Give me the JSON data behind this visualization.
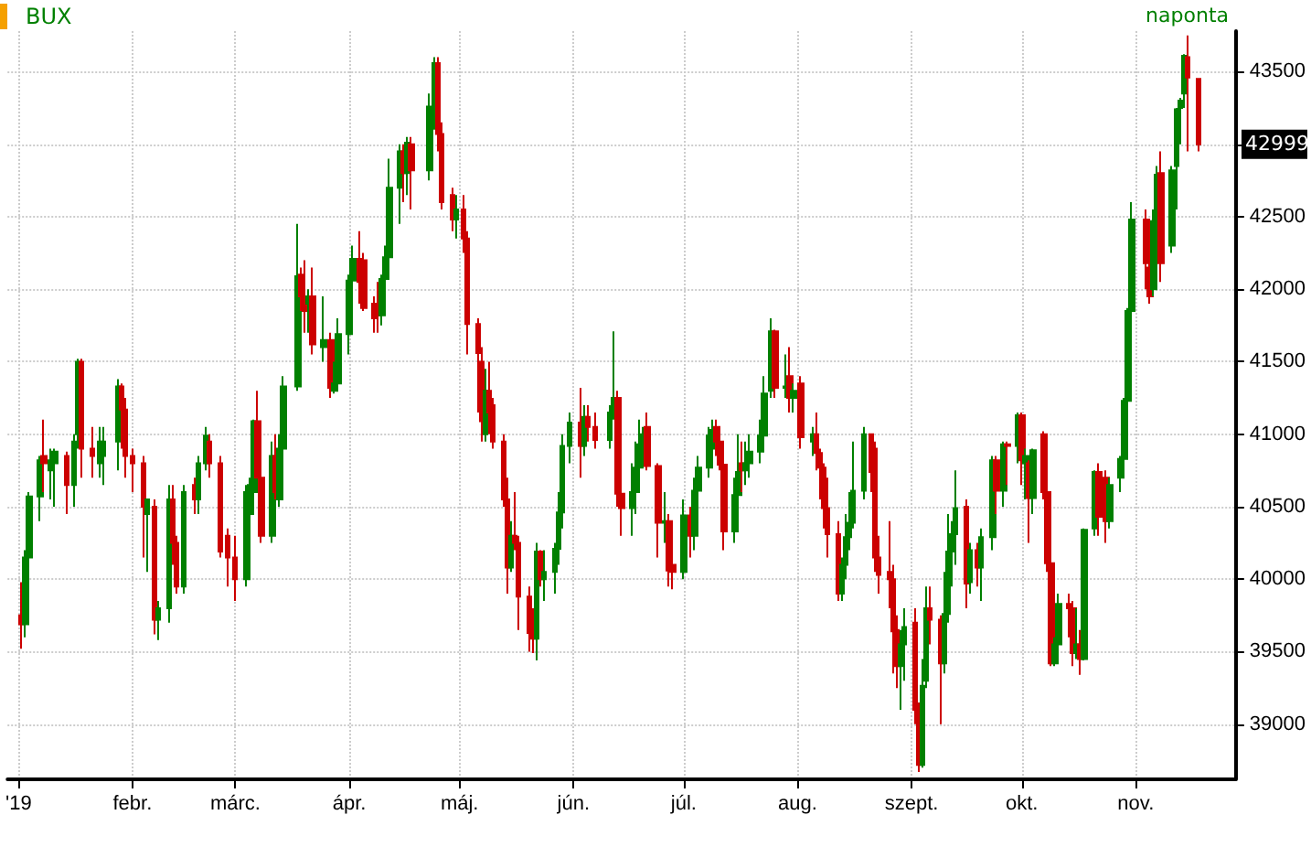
{
  "chart_data": {
    "type": "candlestick",
    "title": "BUX",
    "annotations": [
      "naponta",
      {
        "text": "42999",
        "x": "2019-11-18",
        "y": 42999
      }
    ],
    "grid": true,
    "xlim": [
      "2018-12-29",
      "2019-11-28"
    ],
    "xticks": [
      {
        "value": "2019-01-01",
        "label": "'19"
      },
      {
        "value": "2019-02-01",
        "label": "febr."
      },
      {
        "value": "2019-03-01",
        "label": "márc."
      },
      {
        "value": "2019-04-01",
        "label": "ápr."
      },
      {
        "value": "2019-05-01",
        "label": "máj."
      },
      {
        "value": "2019-06-01",
        "label": "jún."
      },
      {
        "value": "2019-07-01",
        "label": "júl."
      },
      {
        "value": "2019-08-01",
        "label": "aug."
      },
      {
        "value": "2019-09-01",
        "label": "szept."
      },
      {
        "value": "2019-10-01",
        "label": "okt."
      },
      {
        "value": "2019-11-01",
        "label": "nov."
      }
    ],
    "ylim": [
      38620,
      43780
    ],
    "yticks": [
      39000,
      39500,
      40000,
      40500,
      41000,
      41500,
      42000,
      42500,
      {
        "value": 43000,
        "label": null
      },
      43500
    ],
    "x": [
      "2019-01-02",
      "2019-01-03",
      "2019-01-04",
      "2019-01-07",
      "2019-01-08",
      "2019-01-10",
      "2019-01-11",
      "2019-01-14",
      "2019-01-16",
      "2019-01-17",
      "2019-01-18",
      "2019-01-21",
      "2019-01-23",
      "2019-01-24",
      "2019-01-28",
      "2019-01-29",
      "2019-01-30",
      "2019-02-01",
      "2019-02-04",
      "2019-02-05",
      "2019-02-07",
      "2019-02-08",
      "2019-02-11",
      "2019-02-12",
      "2019-02-13",
      "2019-02-15",
      "2019-02-18",
      "2019-02-19",
      "2019-02-21",
      "2019-02-22",
      "2019-02-25",
      "2019-02-27",
      "2019-03-01",
      "2019-03-04",
      "2019-03-05",
      "2019-03-06",
      "2019-03-07",
      "2019-03-08",
      "2019-03-11",
      "2019-03-12",
      "2019-03-13",
      "2019-03-14",
      "2019-03-18",
      "2019-03-19",
      "2019-03-20",
      "2019-03-21",
      "2019-03-22",
      "2019-03-25",
      "2019-03-27",
      "2019-03-28",
      "2019-03-29",
      "2019-04-01",
      "2019-04-02",
      "2019-04-04",
      "2019-04-05",
      "2019-04-08",
      "2019-04-09",
      "2019-04-10",
      "2019-04-11",
      "2019-04-12",
      "2019-04-15",
      "2019-04-16",
      "2019-04-17",
      "2019-04-18",
      "2019-04-23",
      "2019-04-24",
      "2019-04-25",
      "2019-04-26",
      "2019-04-29",
      "2019-04-30",
      "2019-05-02",
      "2019-05-03",
      "2019-05-06",
      "2019-05-07",
      "2019-05-08",
      "2019-05-09",
      "2019-05-10",
      "2019-05-13",
      "2019-05-14",
      "2019-05-15",
      "2019-05-16",
      "2019-05-17",
      "2019-05-20",
      "2019-05-21",
      "2019-05-22",
      "2019-05-23",
      "2019-05-24",
      "2019-05-27",
      "2019-05-28",
      "2019-05-29",
      "2019-05-31",
      "2019-06-03",
      "2019-06-04",
      "2019-06-05",
      "2019-06-07",
      "2019-06-11",
      "2019-06-12",
      "2019-06-13",
      "2019-06-14",
      "2019-06-17",
      "2019-06-18",
      "2019-06-19",
      "2019-06-20",
      "2019-06-21",
      "2019-06-24",
      "2019-06-26",
      "2019-06-27",
      "2019-06-28",
      "2019-07-01",
      "2019-07-03",
      "2019-07-04",
      "2019-07-05",
      "2019-07-08",
      "2019-07-09",
      "2019-07-10",
      "2019-07-11",
      "2019-07-12",
      "2019-07-15",
      "2019-07-16",
      "2019-07-17",
      "2019-07-18",
      "2019-07-19",
      "2019-07-22",
      "2019-07-23",
      "2019-07-25",
      "2019-07-26",
      "2019-07-29",
      "2019-07-30",
      "2019-07-31",
      "2019-08-02",
      "2019-08-05",
      "2019-08-06",
      "2019-08-07",
      "2019-08-08",
      "2019-08-09",
      "2019-08-12",
      "2019-08-13",
      "2019-08-14",
      "2019-08-15",
      "2019-08-16",
      "2019-08-19",
      "2019-08-21",
      "2019-08-22",
      "2019-08-23",
      "2019-08-26",
      "2019-08-27",
      "2019-08-28",
      "2019-08-29",
      "2019-08-30",
      "2019-09-02",
      "2019-09-03",
      "2019-09-04",
      "2019-09-05",
      "2019-09-06",
      "2019-09-09",
      "2019-09-10",
      "2019-09-11",
      "2019-09-12",
      "2019-09-13",
      "2019-09-16",
      "2019-09-17",
      "2019-09-19",
      "2019-09-20",
      "2019-09-23",
      "2019-09-24",
      "2019-09-26",
      "2019-09-27",
      "2019-09-30",
      "2019-10-01",
      "2019-10-02",
      "2019-10-03",
      "2019-10-04",
      "2019-10-07",
      "2019-10-08",
      "2019-10-09",
      "2019-10-10",
      "2019-10-11",
      "2019-10-14",
      "2019-10-15",
      "2019-10-16",
      "2019-10-17",
      "2019-10-18",
      "2019-10-21",
      "2019-10-22",
      "2019-10-24",
      "2019-10-25",
      "2019-10-28",
      "2019-10-29",
      "2019-10-30",
      "2019-10-31",
      "2019-11-04",
      "2019-11-05",
      "2019-11-06",
      "2019-11-07",
      "2019-11-08",
      "2019-11-11",
      "2019-11-12",
      "2019-11-13",
      "2019-11-14",
      "2019-11-15",
      "2019-11-18"
    ],
    "ohlc": [
      [
        39750,
        39980,
        39520,
        39690
      ],
      [
        39690,
        40200,
        39600,
        40150
      ],
      [
        40150,
        40600,
        40050,
        40570
      ],
      [
        40570,
        40850,
        40400,
        40820
      ],
      [
        40850,
        41100,
        40600,
        40800
      ],
      [
        40750,
        40900,
        40550,
        40820
      ],
      [
        40800,
        40900,
        40500,
        40880
      ],
      [
        40850,
        40880,
        40450,
        40650
      ],
      [
        40650,
        41000,
        40500,
        40950
      ],
      [
        41000,
        41520,
        40900,
        41500
      ],
      [
        41500,
        41520,
        40700,
        40900
      ],
      [
        40900,
        41050,
        40700,
        40850
      ],
      [
        40800,
        41050,
        40700,
        40950
      ],
      [
        40850,
        41050,
        40650,
        40950
      ],
      [
        40950,
        41380,
        40750,
        41330
      ],
      [
        41330,
        41350,
        40900,
        41170
      ],
      [
        41170,
        41250,
        40700,
        40850
      ],
      [
        40850,
        40900,
        40600,
        40800
      ],
      [
        40800,
        40850,
        40150,
        40500
      ],
      [
        40450,
        40550,
        40050,
        40550
      ],
      [
        40500,
        40550,
        39620,
        39720
      ],
      [
        39720,
        39850,
        39580,
        39800
      ],
      [
        39800,
        40650,
        39700,
        40550
      ],
      [
        40550,
        40650,
        40100,
        40250
      ],
      [
        40250,
        40300,
        39900,
        39950
      ],
      [
        39950,
        40650,
        39900,
        40600
      ],
      [
        40650,
        40700,
        40450,
        40550
      ],
      [
        40550,
        40850,
        40450,
        40800
      ],
      [
        40800,
        41050,
        40750,
        40990
      ],
      [
        40950,
        41000,
        40700,
        40800
      ],
      [
        40800,
        40850,
        40150,
        40190
      ],
      [
        40300,
        40350,
        39950,
        40150
      ],
      [
        40150,
        40300,
        39850,
        40000
      ],
      [
        40000,
        40650,
        39950,
        40600
      ],
      [
        40450,
        40700,
        40350,
        40650
      ],
      [
        40600,
        41100,
        40500,
        41090
      ],
      [
        41090,
        41300,
        40700,
        40700
      ],
      [
        40700,
        40900,
        40250,
        40300
      ],
      [
        40300,
        40950,
        40250,
        40850
      ],
      [
        40850,
        41000,
        40550,
        40600
      ],
      [
        40550,
        41000,
        40500,
        40900
      ],
      [
        40900,
        41400,
        40750,
        41330
      ],
      [
        41330,
        42450,
        41300,
        42090
      ],
      [
        42100,
        42150,
        41850,
        41950
      ],
      [
        41950,
        42200,
        41700,
        41850
      ],
      [
        41900,
        42000,
        41700,
        41950
      ],
      [
        41950,
        42150,
        41550,
        41620
      ],
      [
        41600,
        41950,
        41500,
        41650
      ],
      [
        41650,
        41700,
        41250,
        41320
      ],
      [
        41300,
        41500,
        41280,
        41350
      ],
      [
        41350,
        41800,
        41300,
        41690
      ],
      [
        41690,
        42100,
        41550,
        42060
      ],
      [
        42060,
        42300,
        41950,
        42210
      ],
      [
        42210,
        42400,
        41900,
        42050
      ],
      [
        42200,
        42250,
        41850,
        41870
      ],
      [
        41900,
        41950,
        41700,
        41800
      ],
      [
        41850,
        42050,
        41700,
        41820
      ],
      [
        41820,
        42100,
        41750,
        42070
      ],
      [
        42070,
        42300,
        42000,
        42220
      ],
      [
        42220,
        42900,
        42150,
        42700
      ],
      [
        42700,
        43000,
        42450,
        42950
      ],
      [
        42950,
        43000,
        42600,
        42800
      ],
      [
        42800,
        43050,
        42650,
        43010
      ],
      [
        43000,
        43050,
        42550,
        42820
      ],
      [
        42820,
        43350,
        42750,
        43260
      ],
      [
        43260,
        43600,
        43100,
        43560
      ],
      [
        43560,
        43600,
        42950,
        43070
      ],
      [
        43070,
        43150,
        42550,
        42600
      ],
      [
        42650,
        42700,
        42400,
        42480
      ],
      [
        42480,
        42650,
        42350,
        42550
      ],
      [
        42550,
        42650,
        42250,
        42350
      ],
      [
        42350,
        42400,
        41550,
        41760
      ],
      [
        41760,
        41800,
        41150,
        41560
      ],
      [
        41500,
        41600,
        40950,
        41090
      ],
      [
        41000,
        41450,
        40950,
        41300
      ],
      [
        41300,
        41500,
        41000,
        41150
      ],
      [
        41200,
        41250,
        40900,
        40950
      ],
      [
        40950,
        41000,
        40500,
        40550
      ],
      [
        40550,
        40700,
        39900,
        40080
      ],
      [
        40080,
        40400,
        40050,
        40300
      ],
      [
        40300,
        40600,
        40200,
        40250
      ],
      [
        40250,
        40300,
        39650,
        39880
      ],
      [
        39880,
        39950,
        39500,
        39630
      ],
      [
        39650,
        39800,
        39490,
        39590
      ],
      [
        39590,
        40250,
        39440,
        40190
      ],
      [
        40190,
        40200,
        39950,
        40000
      ],
      [
        40000,
        40200,
        39850,
        40050
      ],
      [
        40050,
        40250,
        39900,
        40210
      ],
      [
        40210,
        40600,
        40100,
        40460
      ],
      [
        40460,
        41000,
        40350,
        40920
      ],
      [
        40920,
        41150,
        40800,
        41080
      ],
      [
        41080,
        41320,
        40700,
        40920
      ],
      [
        40920,
        41200,
        40850,
        41120
      ],
      [
        41120,
        41200,
        40950,
        41050
      ],
      [
        41050,
        41150,
        40900,
        40960
      ],
      [
        40960,
        41200,
        40900,
        41150
      ],
      [
        41150,
        41710,
        41100,
        41250
      ],
      [
        41250,
        41300,
        40500,
        40590
      ],
      [
        40590,
        40750,
        40300,
        40490
      ],
      [
        40490,
        40800,
        40300,
        40600
      ],
      [
        40600,
        40950,
        40450,
        40770
      ],
      [
        40770,
        41100,
        40600,
        40930
      ],
      [
        40930,
        41050,
        40800,
        41000
      ],
      [
        41050,
        41150,
        40750,
        40780
      ],
      [
        40780,
        40800,
        40150,
        40390
      ],
      [
        40390,
        40600,
        40250,
        40400
      ],
      [
        40400,
        40450,
        39950,
        40060
      ],
      [
        40100,
        40350,
        39930,
        40050
      ],
      [
        40050,
        40550,
        40000,
        40440
      ],
      [
        40440,
        40500,
        40150,
        40300
      ],
      [
        40300,
        40700,
        40200,
        40610
      ],
      [
        40610,
        40850,
        40500,
        40770
      ],
      [
        40770,
        41050,
        40700,
        40990
      ],
      [
        40900,
        41100,
        40850,
        41030
      ],
      [
        41050,
        41100,
        40850,
        40950
      ],
      [
        40950,
        41000,
        40750,
        40790
      ],
      [
        40790,
        40850,
        40200,
        40330
      ],
      [
        40330,
        40700,
        40250,
        40580
      ],
      [
        40580,
        41000,
        40500,
        40740
      ],
      [
        40800,
        40950,
        40600,
        40750
      ],
      [
        40750,
        40950,
        40650,
        40800
      ],
      [
        40800,
        41000,
        40700,
        40880
      ],
      [
        40880,
        41100,
        40800,
        40990
      ],
      [
        40990,
        41400,
        40950,
        41280
      ],
      [
        41300,
        41800,
        41250,
        41710
      ],
      [
        41710,
        41720,
        41250,
        41320
      ],
      [
        41320,
        41550,
        41250,
        41330
      ],
      [
        41400,
        41600,
        41150,
        41250
      ],
      [
        41250,
        41350,
        41150,
        41300
      ],
      [
        41350,
        41400,
        40900,
        40980
      ],
      [
        40950,
        41050,
        40850,
        41000
      ],
      [
        41000,
        41150,
        40750,
        40870
      ],
      [
        40870,
        40900,
        40550,
        40770
      ],
      [
        40770,
        40800,
        40350,
        40490
      ],
      [
        40490,
        40700,
        40150,
        40310
      ],
      [
        40310,
        40400,
        39850,
        39900
      ],
      [
        39900,
        40150,
        39850,
        40100
      ],
      [
        40100,
        40450,
        40000,
        40290
      ],
      [
        40290,
        40600,
        40200,
        40390
      ],
      [
        40390,
        40950,
        40350,
        40610
      ],
      [
        40610,
        41050,
        40550,
        41000
      ],
      [
        41000,
        41000,
        40600,
        40740
      ],
      [
        40900,
        40950,
        40050,
        40150
      ],
      [
        40150,
        40300,
        39900,
        40030
      ],
      [
        40050,
        40400,
        39800,
        40000
      ],
      [
        40000,
        40100,
        39350,
        39640
      ],
      [
        39650,
        39750,
        39250,
        39400
      ],
      [
        39400,
        39650,
        39100,
        39550
      ],
      [
        39550,
        39800,
        39300,
        39670
      ],
      [
        39700,
        39800,
        39000,
        39100
      ],
      [
        39100,
        39150,
        38670,
        38720
      ],
      [
        38720,
        39450,
        38700,
        39265
      ],
      [
        39300,
        39950,
        39250,
        39800
      ],
      [
        39800,
        39950,
        39550,
        39720
      ],
      [
        39720,
        39750,
        39000,
        39420
      ],
      [
        39420,
        40050,
        39350,
        39760
      ],
      [
        39760,
        40450,
        39700,
        40190
      ],
      [
        40190,
        40400,
        39950,
        40310
      ],
      [
        40310,
        40750,
        40100,
        40490
      ],
      [
        40500,
        40550,
        39800,
        39970
      ],
      [
        39980,
        40250,
        39900,
        40200
      ],
      [
        40200,
        40250,
        39950,
        40080
      ],
      [
        40080,
        40350,
        39850,
        40290
      ],
      [
        40290,
        40850,
        40200,
        40820
      ],
      [
        40820,
        40850,
        40450,
        40610
      ],
      [
        40610,
        40950,
        40500,
        40930
      ],
      [
        40930,
        40950,
        40650,
        40920
      ],
      [
        40920,
        41150,
        40800,
        41130
      ],
      [
        41130,
        41150,
        40650,
        40820
      ],
      [
        40800,
        40900,
        40550,
        40850
      ],
      [
        40800,
        40820,
        40250,
        40560
      ],
      [
        40560,
        40900,
        40450,
        40890
      ],
      [
        41000,
        41020,
        40550,
        40600
      ],
      [
        40600,
        40650,
        40050,
        40110
      ],
      [
        40110,
        40150,
        39400,
        39420
      ],
      [
        39420,
        39600,
        39400,
        39550
      ],
      [
        39550,
        39900,
        39450,
        39830
      ],
      [
        39830,
        39900,
        39600,
        39800
      ],
      [
        39800,
        39850,
        39400,
        39490
      ],
      [
        39490,
        39800,
        39450,
        39550
      ],
      [
        39550,
        39650,
        39340,
        39450
      ],
      [
        39450,
        40350,
        39440,
        40340
      ],
      [
        40350,
        40750,
        40300,
        40740
      ],
      [
        40740,
        40800,
        40300,
        40430
      ],
      [
        40700,
        40750,
        40250,
        40400
      ],
      [
        40400,
        40700,
        40350,
        40650
      ],
      [
        40700,
        40850,
        40600,
        40830
      ],
      [
        40830,
        41250,
        40800,
        41230
      ],
      [
        41230,
        41870,
        41200,
        41850
      ],
      [
        41850,
        42600,
        41800,
        42480
      ],
      [
        42480,
        42550,
        42000,
        42180
      ],
      [
        42150,
        42200,
        41900,
        41950
      ],
      [
        42000,
        42550,
        41950,
        42470
      ],
      [
        42470,
        42850,
        42100,
        42790
      ],
      [
        42800,
        42950,
        42050,
        42180
      ],
      [
        42300,
        42850,
        42250,
        42820
      ],
      [
        42850,
        43250,
        42550,
        43240
      ],
      [
        43250,
        43320,
        43000,
        43300
      ],
      [
        43350,
        43620,
        43250,
        43610
      ],
      [
        43600,
        43750,
        42950,
        43460
      ],
      [
        43450,
        43450,
        42950,
        42999
      ]
    ]
  }
}
